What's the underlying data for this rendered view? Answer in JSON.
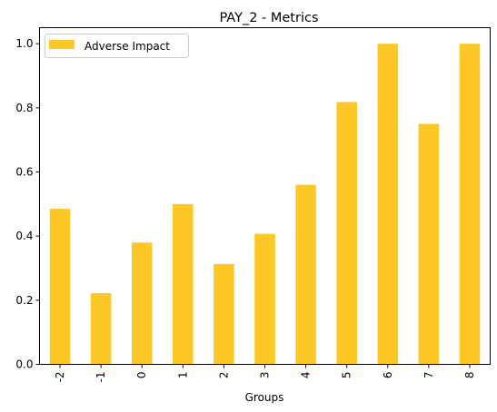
{
  "chart_data": {
    "type": "bar",
    "title": "PAY_2 - Metrics",
    "xlabel": "Groups",
    "ylabel": "",
    "categories": [
      "-2",
      "-1",
      "0",
      "1",
      "2",
      "3",
      "4",
      "5",
      "6",
      "7",
      "8"
    ],
    "series": [
      {
        "name": "Adverse Impact",
        "color": "#fdc826",
        "values": [
          0.485,
          0.222,
          0.38,
          0.5,
          0.313,
          0.407,
          0.56,
          0.818,
          1.0,
          0.75,
          1.0
        ]
      }
    ],
    "ylim": [
      0,
      1.05
    ],
    "yticks": [
      "0.0",
      "0.2",
      "0.4",
      "0.6",
      "0.8",
      "1.0"
    ],
    "ytick_values": [
      0,
      0.2,
      0.4,
      0.6,
      0.8,
      1.0
    ],
    "legend_position": "upper-left",
    "grid": false,
    "xtick_rotation": "vertical"
  }
}
